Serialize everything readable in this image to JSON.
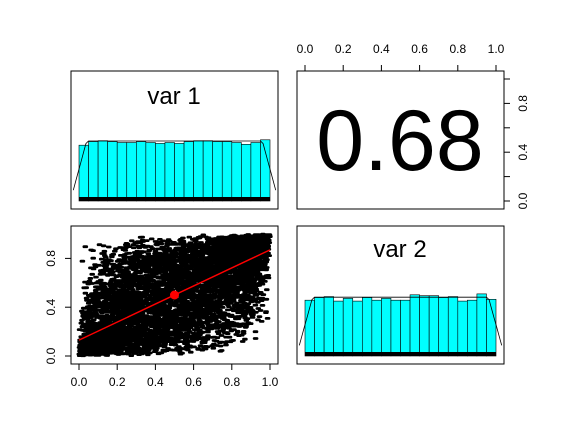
{
  "chart_data": [
    {
      "type": "bar",
      "panel": "top-left",
      "title": "var 1",
      "xlim": [
        0,
        1
      ],
      "bins": 20,
      "bar_color": "#00FFFF",
      "values": [
        0.62,
        0.66,
        0.67,
        0.66,
        0.65,
        0.65,
        0.66,
        0.65,
        0.64,
        0.65,
        0.64,
        0.66,
        0.67,
        0.67,
        0.66,
        0.66,
        0.65,
        0.63,
        0.65,
        0.68
      ],
      "density_curve": true,
      "rug": true
    },
    {
      "type": "table",
      "panel": "top-right",
      "correlation": "0.68",
      "top_axis": {
        "ticks": [
          "0.0",
          "0.2",
          "0.4",
          "0.6",
          "0.8",
          "1.0"
        ]
      },
      "right_axis": {
        "ticks": [
          "0.0",
          "0.4",
          "0.8"
        ]
      }
    },
    {
      "type": "scatter",
      "panel": "bottom-left",
      "xlim": [
        0,
        1
      ],
      "ylim": [
        0,
        1
      ],
      "point_color": "#000000",
      "fit_line": {
        "color": "#FF0000",
        "intercept": 0.13,
        "slope": 0.74
      },
      "center_point": {
        "x": 0.5,
        "y": 0.5,
        "color": "#FF0000"
      },
      "correlation": 0.68,
      "n_points": 6000,
      "x_axis": {
        "ticks": [
          "0.0",
          "0.2",
          "0.4",
          "0.6",
          "0.8",
          "1.0"
        ]
      },
      "y_axis": {
        "ticks": [
          "0.0",
          "0.4",
          "0.8"
        ]
      }
    },
    {
      "type": "bar",
      "panel": "bottom-right",
      "title": "var 2",
      "xlim": [
        0,
        1
      ],
      "bins": 20,
      "bar_color": "#00FFFF",
      "values": [
        0.62,
        0.65,
        0.66,
        0.61,
        0.64,
        0.61,
        0.65,
        0.62,
        0.64,
        0.62,
        0.62,
        0.68,
        0.67,
        0.67,
        0.65,
        0.66,
        0.61,
        0.62,
        0.69,
        0.63
      ],
      "density_curve": true,
      "rug": true
    }
  ]
}
